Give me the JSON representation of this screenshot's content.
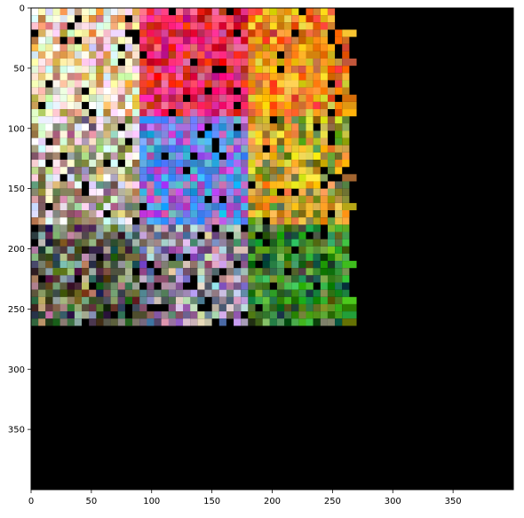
{
  "chart_data": {
    "type": "heatmap",
    "description_visible": "image grid (imshow) of colored thumbnail tiles on black background",
    "x_axis": {
      "range": [
        0,
        400
      ],
      "ticks": [
        0,
        50,
        100,
        150,
        200,
        250,
        300,
        350
      ]
    },
    "y_axis": {
      "range": [
        400,
        0
      ],
      "inverted": true,
      "ticks": [
        0,
        50,
        100,
        150,
        200,
        250,
        300,
        350
      ]
    },
    "occupied_extent": {
      "x": [
        0,
        263
      ],
      "y": [
        0,
        263
      ]
    },
    "background_color": "#000000",
    "regions": [
      {
        "area": "top-left",
        "dominant_colors": [
          "#f2f2f2",
          "#d9a15b",
          "#f5e6c8"
        ]
      },
      {
        "area": "top-center",
        "dominant_colors": [
          "#e0306a",
          "#d81f1f",
          "#f24a8c"
        ]
      },
      {
        "area": "top-right",
        "dominant_colors": [
          "#e85a1c",
          "#f08a1a",
          "#f5b82a"
        ]
      },
      {
        "area": "middle-left",
        "dominant_colors": [
          "#f4f4f4",
          "#c2b49a",
          "#8a7a60"
        ]
      },
      {
        "area": "middle-center",
        "dominant_colors": [
          "#b45bd0",
          "#5a9ae8",
          "#3aa0f0"
        ]
      },
      {
        "area": "middle-right",
        "dominant_colors": [
          "#f2c23a",
          "#e09a20",
          "#7a8a30"
        ]
      },
      {
        "area": "bottom-left",
        "dominant_colors": [
          "#555040",
          "#9a9a8a",
          "#3a3a30"
        ]
      },
      {
        "area": "bottom-center",
        "dominant_colors": [
          "#6a6a7a",
          "#8a6aa0",
          "#c0c0c8"
        ]
      },
      {
        "area": "bottom-right",
        "dominant_colors": [
          "#3a8a30",
          "#5aa040",
          "#2a5a20"
        ]
      }
    ]
  }
}
